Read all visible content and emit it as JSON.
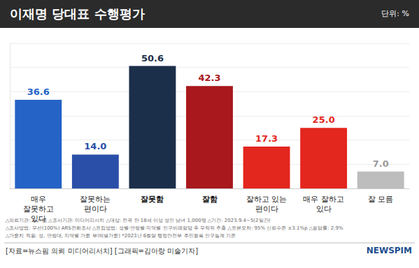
{
  "chart_data": {
    "type": "bar",
    "title": "이재명 당대표 수행평가",
    "subtitle": "단위: %",
    "categories": [
      "매우 잘못하고 있다",
      "잘못하는 편이다",
      "잘못함",
      "잘함",
      "잘하고 있는 편이다",
      "매우 잘하고 있다",
      "잘 모름"
    ],
    "values": [
      36.6,
      14.0,
      50.6,
      42.3,
      17.3,
      25.0,
      7.0
    ],
    "value_labels": [
      "36.6",
      "14.0",
      "50.6",
      "42.3",
      "17.3",
      "25.0",
      "7.0"
    ],
    "colors": [
      "#2563c6",
      "#2a4fa8",
      "#1c2f4a",
      "#a8181c",
      "#e3261e",
      "#e3261e",
      "#bdbdbd"
    ],
    "ylim": [
      0,
      60
    ],
    "yticks": [
      0,
      10,
      20,
      30,
      40,
      50,
      60
    ],
    "grid": true,
    "data_labels": true,
    "tick_labels": "x",
    "notes": [
      "△의뢰기관: 뉴스핌 △조사기관: 미디어리서치 △대상: 전국 만 18세 이상 성인 남녀 1,000명 △기간: 2023.9.4~5(2일간)",
      "△조사방법: 무선(100%) ARS전화조사 △표집방법: 성별·연령별·지역별 인구비례할당 후 무작위 추출 △표본오차: 95% 신뢰수준 ±3.1%p △응답률: 2.9%",
      "△가중치 적용: 성, 연령대, 지역별 가중 부여(셀가중) *2023년 6월말 행정안전부 주민등록 인구통계 기준"
    ],
    "source": "[자료=뉴스핌 의뢰 미디어리서치] [그래픽=김아랑 미술기자]",
    "logo": "NEWSPIM"
  }
}
